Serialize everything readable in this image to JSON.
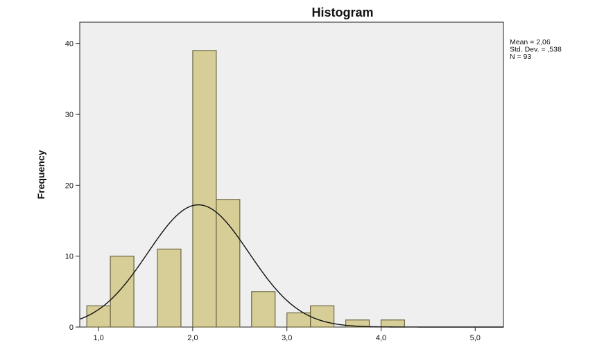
{
  "chart_data": {
    "type": "bar",
    "title": "Histogram",
    "xlabel": "",
    "ylabel": "Frequency",
    "xlim": [
      0.8,
      5.3
    ],
    "ylim": [
      0,
      43
    ],
    "bin_width": 0.25,
    "bins": [
      {
        "start": 0.875,
        "value": 3
      },
      {
        "start": 1.125,
        "value": 10
      },
      {
        "start": 1.625,
        "value": 11
      },
      {
        "start": 2.0,
        "value": 39
      },
      {
        "start": 2.25,
        "value": 18
      },
      {
        "start": 2.625,
        "value": 5
      },
      {
        "start": 3.0,
        "value": 2
      },
      {
        "start": 3.25,
        "value": 3
      },
      {
        "start": 3.625,
        "value": 1
      },
      {
        "start": 4.0,
        "value": 1
      }
    ],
    "x_ticks": [
      {
        "value": 1.0,
        "label": "1,0"
      },
      {
        "value": 2.0,
        "label": "2,0"
      },
      {
        "value": 3.0,
        "label": "3,0"
      },
      {
        "value": 4.0,
        "label": "4,0"
      },
      {
        "value": 5.0,
        "label": "5,0"
      }
    ],
    "y_ticks": [
      {
        "value": 0,
        "label": "0"
      },
      {
        "value": 10,
        "label": "10"
      },
      {
        "value": 20,
        "label": "20"
      },
      {
        "value": 30,
        "label": "30"
      },
      {
        "value": 40,
        "label": "40"
      }
    ],
    "normal_curve": {
      "mean": 2.06,
      "sd": 0.538,
      "n": 93
    },
    "stats_box": [
      "Mean = 2,06",
      "Std. Dev. = ,538",
      "N = 93"
    ],
    "grid": false,
    "colors": {
      "bar_fill": "#d6cd97",
      "bar_stroke": "#6b6640",
      "plot_background": "#efefef",
      "curve": "#111111"
    }
  }
}
